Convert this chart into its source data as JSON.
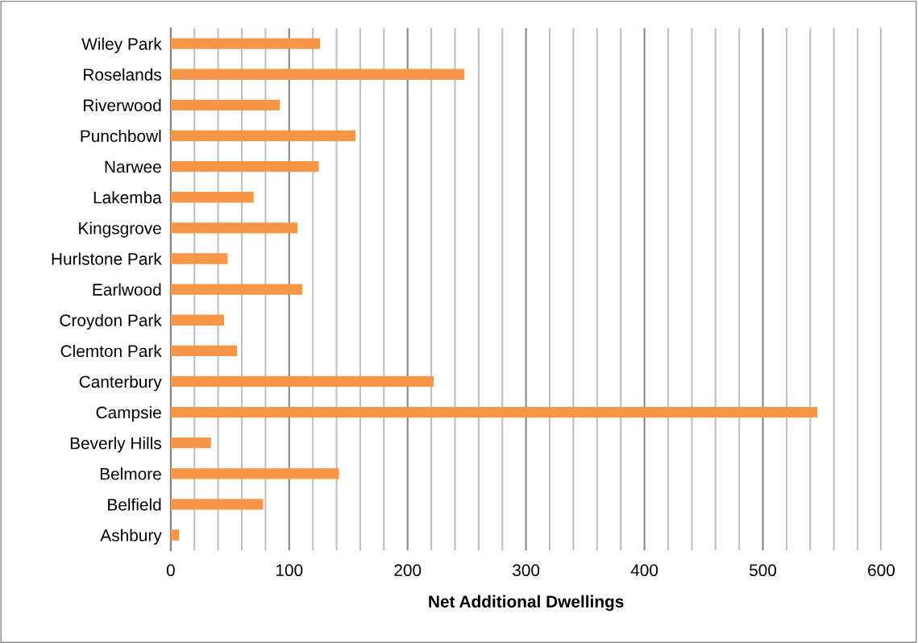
{
  "chart_data": {
    "type": "bar",
    "orientation": "horizontal",
    "xlabel": "Net Additional Dwellings",
    "categories": [
      "Wiley Park",
      "Roselands",
      "Riverwood",
      "Punchbowl",
      "Narwee",
      "Lakemba",
      "Kingsgrove",
      "Hurlstone Park",
      "Earlwood",
      "Croydon Park",
      "Clemton Park",
      "Canterbury",
      "Campsie",
      "Beverly Hills",
      "Belmore",
      "Belfield",
      "Ashbury"
    ],
    "values": [
      126,
      248,
      92,
      156,
      125,
      70,
      107,
      48,
      111,
      45,
      56,
      222,
      546,
      34,
      142,
      78,
      7
    ],
    "color": "#f79646",
    "xlim": [
      0,
      600
    ],
    "xticks": [
      0,
      {
        "value": 20,
        "label": null
      },
      {
        "value": 40,
        "label": null
      },
      {
        "value": 60,
        "label": null
      },
      {
        "value": 80,
        "label": null
      },
      100,
      {
        "value": 120,
        "label": null
      },
      {
        "value": 140,
        "label": null
      },
      {
        "value": 160,
        "label": null
      },
      {
        "value": 180,
        "label": null
      },
      200,
      {
        "value": 220,
        "label": null
      },
      {
        "value": 240,
        "label": null
      },
      {
        "value": 260,
        "label": null
      },
      {
        "value": 280,
        "label": null
      },
      300,
      {
        "value": 320,
        "label": null
      },
      {
        "value": 340,
        "label": null
      },
      {
        "value": 360,
        "label": null
      },
      {
        "value": 380,
        "label": null
      },
      400,
      {
        "value": 420,
        "label": null
      },
      {
        "value": 440,
        "label": null
      },
      {
        "value": 460,
        "label": null
      },
      {
        "value": 480,
        "label": null
      },
      500,
      {
        "value": 520,
        "label": null
      },
      {
        "value": 540,
        "label": null
      },
      {
        "value": 560,
        "label": null
      },
      {
        "value": 580,
        "label": null
      },
      600
    ],
    "grid": "x",
    "legend": false
  }
}
